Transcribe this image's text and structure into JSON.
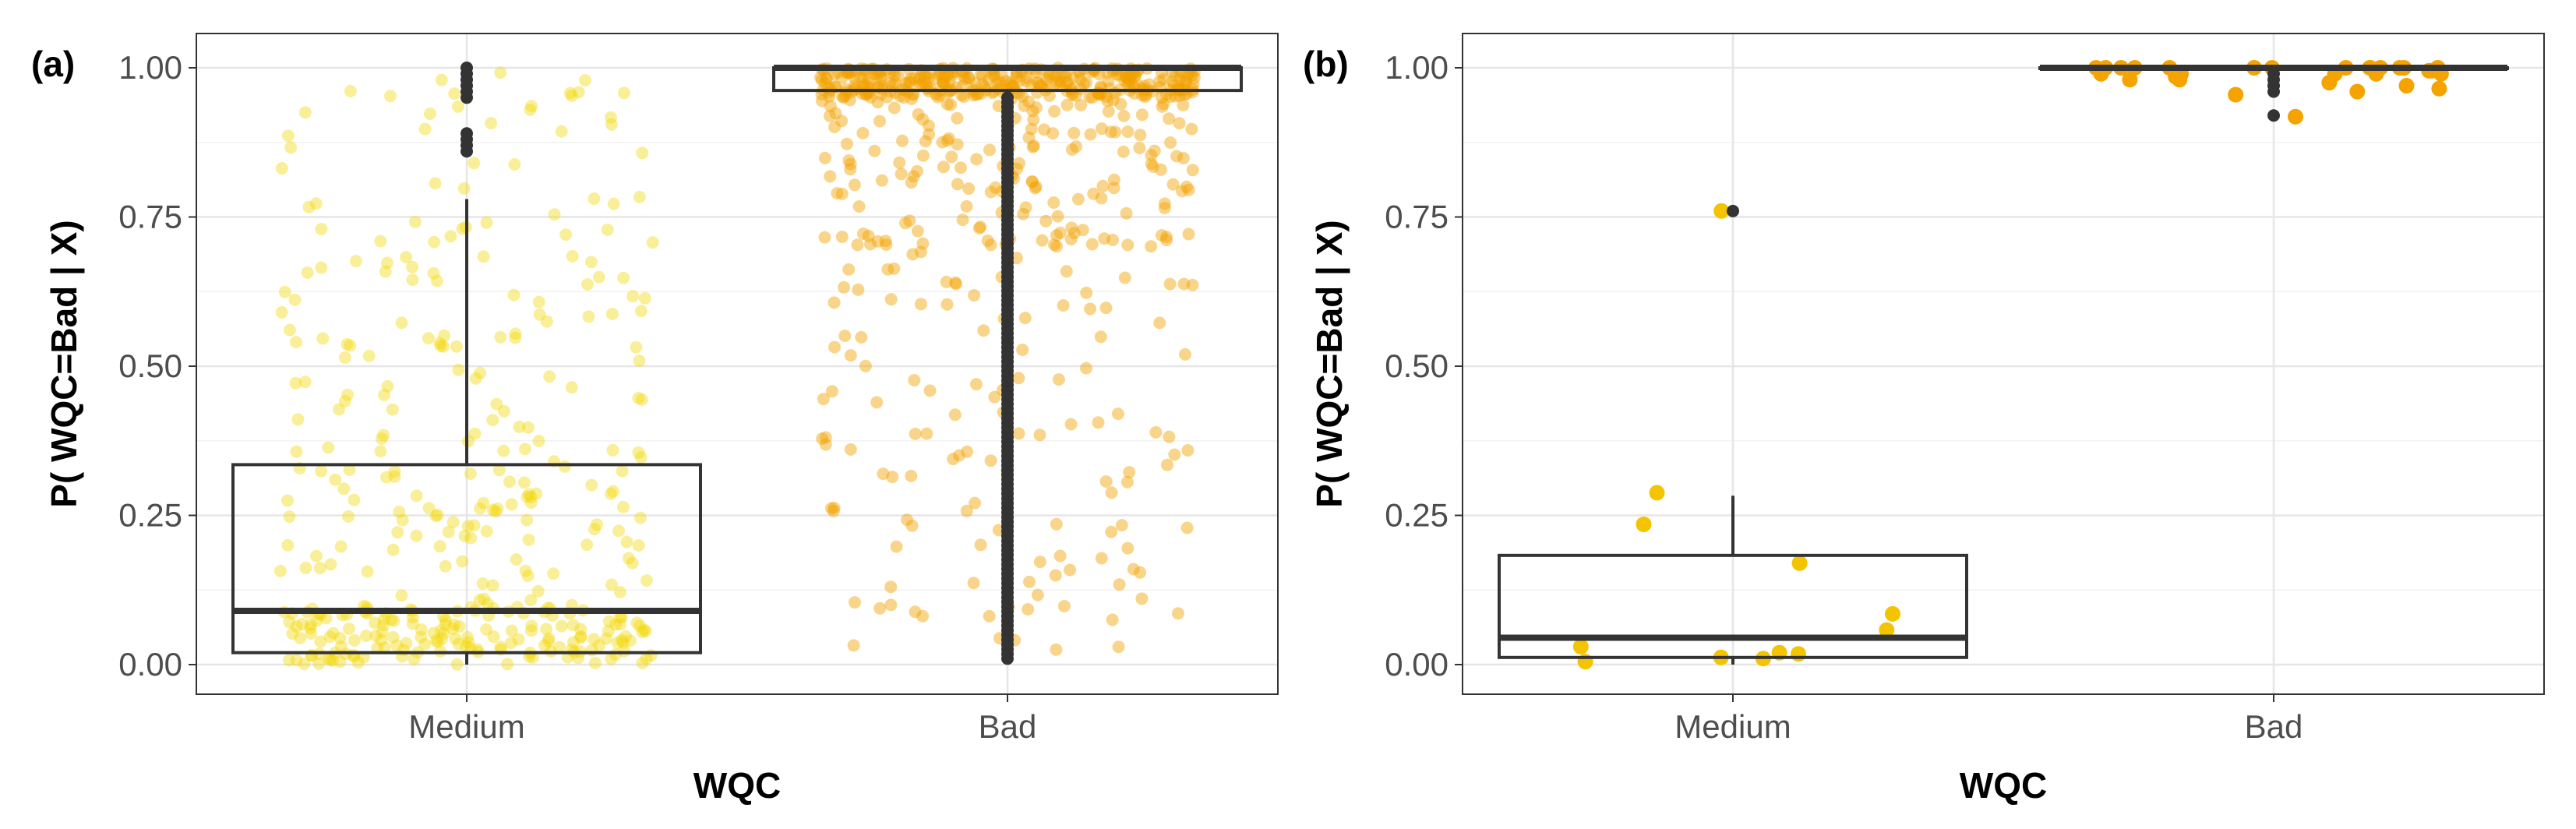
{
  "chart_data": [
    {
      "type": "box",
      "panel": "(a)",
      "xlabel": "WQC",
      "ylabel": "P( WQC=Bad | X)",
      "categories": [
        "Medium",
        "Bad"
      ],
      "ylim": [
        -0.05,
        1.05
      ],
      "yticks": [
        "0.00",
        "0.25",
        "0.50",
        "0.75",
        "1.00"
      ],
      "ytick_values": [
        0,
        0.25,
        0.5,
        0.75,
        1.0
      ],
      "grid": true,
      "boxes": [
        {
          "category": "Medium",
          "min": 0.0,
          "q1": 0.02,
          "median": 0.09,
          "q3": 0.335,
          "whisker_high": 0.78,
          "outliers": [
            0.86,
            0.87,
            0.88,
            0.89,
            0.95,
            0.96,
            0.97,
            0.98,
            0.99,
            1.0
          ]
        },
        {
          "category": "Bad",
          "min": 0.96,
          "q1": 0.962,
          "median": 1.0,
          "q3": 1.0,
          "whisker_high": 1.0,
          "outliers_range": [
            0.01,
            0.95
          ],
          "outlier_count": 120
        }
      ],
      "jitter": [
        {
          "category": "Medium",
          "color": "#f2d600",
          "alpha": 0.4,
          "count": 380,
          "dist": "skew_low"
        },
        {
          "category": "Bad",
          "color": "#f2a100",
          "alpha": 0.45,
          "count": 620,
          "dist": "skew_high"
        }
      ]
    },
    {
      "type": "box",
      "panel": "(b)",
      "xlabel": "WQC",
      "ylabel": "P( WQC=Bad | X)",
      "categories": [
        "Medium",
        "Bad"
      ],
      "ylim": [
        -0.02,
        1.05
      ],
      "yticks": [
        "0.00",
        "0.25",
        "0.50",
        "0.75",
        "1.00"
      ],
      "ytick_values": [
        0,
        0.25,
        0.5,
        0.75,
        1.0
      ],
      "grid": true,
      "boxes": [
        {
          "category": "Medium",
          "min": 0.0,
          "q1": 0.012,
          "median": 0.045,
          "q3": 0.183,
          "whisker_high": 0.283,
          "outliers": [
            0.76
          ]
        },
        {
          "category": "Bad",
          "min": 1.0,
          "q1": 1.0,
          "median": 1.0,
          "q3": 1.0,
          "whisker_high": 1.0,
          "outliers": [
            0.92,
            0.96,
            0.97,
            0.98,
            0.99
          ]
        }
      ],
      "points": [
        {
          "category": "Medium",
          "color": "#f5c400",
          "values": [
            0.76,
            0.235,
            0.288,
            0.17,
            0.085,
            0.058,
            0.02,
            0.01,
            0.012,
            0.03,
            0.005,
            0.018
          ]
        },
        {
          "category": "Bad",
          "color": "#f5a300",
          "values": [
            0.918,
            0.96,
            0.955,
            0.99,
            1.0,
            0.98,
            1.0,
            0.995,
            0.97,
            1.0,
            0.985,
            1.0,
            0.99,
            1.0,
            0.975,
            1.0,
            0.99,
            1.0,
            0.995,
            1.0,
            0.98,
            1.0,
            0.99,
            1.0,
            1.0,
            0.965,
            1.0,
            0.99,
            1.0,
            1.0
          ]
        }
      ]
    }
  ]
}
